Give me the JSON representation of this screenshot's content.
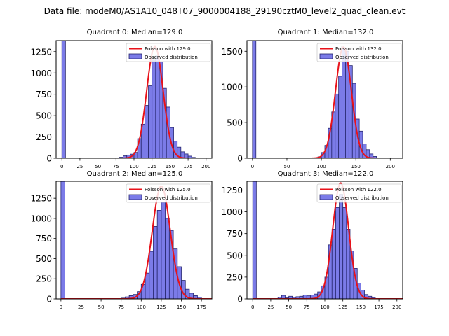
{
  "suptitle": "Data file: modeM0/AS1A10_048T07_9000004188_29190cztM0_level2_quad_clean.evt",
  "colors": {
    "hist_fill": "#7b7be8",
    "hist_edge": "#26266e",
    "poisson": "#e8121a",
    "axis": "#000000"
  },
  "chart_data": [
    {
      "type": "bar",
      "title": "Quadrant 0: Median=129.0",
      "legend": {
        "placement": "top-right",
        "poisson_label": "Poisson with 129.0",
        "hist_label": "Observed distribution"
      },
      "xlim": [
        -8,
        208
      ],
      "ylim": [
        0,
        1380
      ],
      "xticks": [
        0,
        25,
        50,
        75,
        100,
        125,
        150,
        175,
        200
      ],
      "yticks": [
        0,
        250,
        500,
        750,
        1000,
        1250
      ],
      "bin_width": 5,
      "mean": 129.0,
      "poisson_peak": 1310,
      "edge_bar": 1380,
      "bins": [
        [
          80,
          12
        ],
        [
          85,
          28
        ],
        [
          90,
          38
        ],
        [
          95,
          48
        ],
        [
          100,
          68
        ],
        [
          105,
          230
        ],
        [
          110,
          400
        ],
        [
          115,
          620
        ],
        [
          120,
          850
        ],
        [
          125,
          1150
        ],
        [
          130,
          1200
        ],
        [
          135,
          1130
        ],
        [
          140,
          820
        ],
        [
          145,
          600
        ],
        [
          150,
          360
        ],
        [
          155,
          200
        ],
        [
          160,
          130
        ],
        [
          165,
          75
        ],
        [
          170,
          50
        ],
        [
          175,
          25
        ],
        [
          180,
          10
        ]
      ]
    },
    {
      "type": "bar",
      "title": "Quadrant 1: Median=132.0",
      "legend": {
        "placement": "top-right",
        "poisson_label": "Poisson with 132.0",
        "hist_label": "Observed distribution"
      },
      "xlim": [
        -8,
        218
      ],
      "ylim": [
        0,
        1650
      ],
      "xticks": [
        0,
        50,
        100,
        150,
        200
      ],
      "yticks": [
        0,
        500,
        1000,
        1500
      ],
      "bin_width": 5,
      "mean": 132.0,
      "poisson_peak": 1560,
      "edge_bar": 1650,
      "bins": [
        [
          95,
          20
        ],
        [
          100,
          80
        ],
        [
          105,
          180
        ],
        [
          110,
          420
        ],
        [
          115,
          650
        ],
        [
          120,
          900
        ],
        [
          125,
          1150
        ],
        [
          130,
          1550
        ],
        [
          135,
          1500
        ],
        [
          140,
          1300
        ],
        [
          145,
          1050
        ],
        [
          150,
          550
        ],
        [
          155,
          380
        ],
        [
          160,
          200
        ],
        [
          165,
          120
        ],
        [
          170,
          60
        ],
        [
          175,
          25
        ]
      ]
    },
    {
      "type": "bar",
      "title": "Quadrant 2: Median=125.0",
      "legend": {
        "placement": "top-right",
        "poisson_label": "Poisson with 125.0",
        "hist_label": "Observed distribution"
      },
      "xlim": [
        -6,
        188
      ],
      "ylim": [
        0,
        1460
      ],
      "xticks": [
        0,
        25,
        50,
        75,
        100,
        125,
        150,
        175
      ],
      "yticks": [
        0,
        250,
        500,
        750,
        1000,
        1250
      ],
      "bin_width": 5,
      "mean": 125.0,
      "poisson_peak": 1400,
      "edge_bar": 1460,
      "bins": [
        [
          75,
          10
        ],
        [
          80,
          25
        ],
        [
          85,
          40
        ],
        [
          90,
          55
        ],
        [
          95,
          90
        ],
        [
          100,
          180
        ],
        [
          105,
          320
        ],
        [
          110,
          590
        ],
        [
          115,
          900
        ],
        [
          120,
          1100
        ],
        [
          125,
          1200
        ],
        [
          130,
          1000
        ],
        [
          135,
          850
        ],
        [
          140,
          620
        ],
        [
          145,
          400
        ],
        [
          150,
          230
        ],
        [
          155,
          120
        ],
        [
          160,
          70
        ],
        [
          165,
          40
        ],
        [
          170,
          20
        ]
      ]
    },
    {
      "type": "bar",
      "title": "Quadrant 3: Median=122.0",
      "legend": {
        "placement": "top-right",
        "poisson_label": "Poisson with 122.0",
        "hist_label": "Observed distribution"
      },
      "xlim": [
        -8,
        208
      ],
      "ylim": [
        0,
        1350
      ],
      "xticks": [
        0,
        25,
        50,
        75,
        100,
        125,
        150,
        175,
        200
      ],
      "yticks": [
        0,
        250,
        500,
        750,
        1000,
        1250
      ],
      "bin_width": 5,
      "mean": 122.0,
      "poisson_peak": 1330,
      "edge_bar": 1350,
      "bins": [
        [
          35,
          20
        ],
        [
          40,
          40
        ],
        [
          45,
          15
        ],
        [
          50,
          30
        ],
        [
          55,
          18
        ],
        [
          60,
          25
        ],
        [
          65,
          30
        ],
        [
          70,
          45
        ],
        [
          75,
          35
        ],
        [
          80,
          45
        ],
        [
          85,
          55
        ],
        [
          90,
          80
        ],
        [
          95,
          150
        ],
        [
          100,
          250
        ],
        [
          105,
          620
        ],
        [
          110,
          800
        ],
        [
          115,
          1050
        ],
        [
          120,
          1200
        ],
        [
          125,
          1050
        ],
        [
          130,
          800
        ],
        [
          135,
          550
        ],
        [
          140,
          350
        ],
        [
          145,
          180
        ],
        [
          150,
          100
        ],
        [
          155,
          50
        ],
        [
          160,
          30
        ],
        [
          165,
          15
        ]
      ]
    }
  ]
}
